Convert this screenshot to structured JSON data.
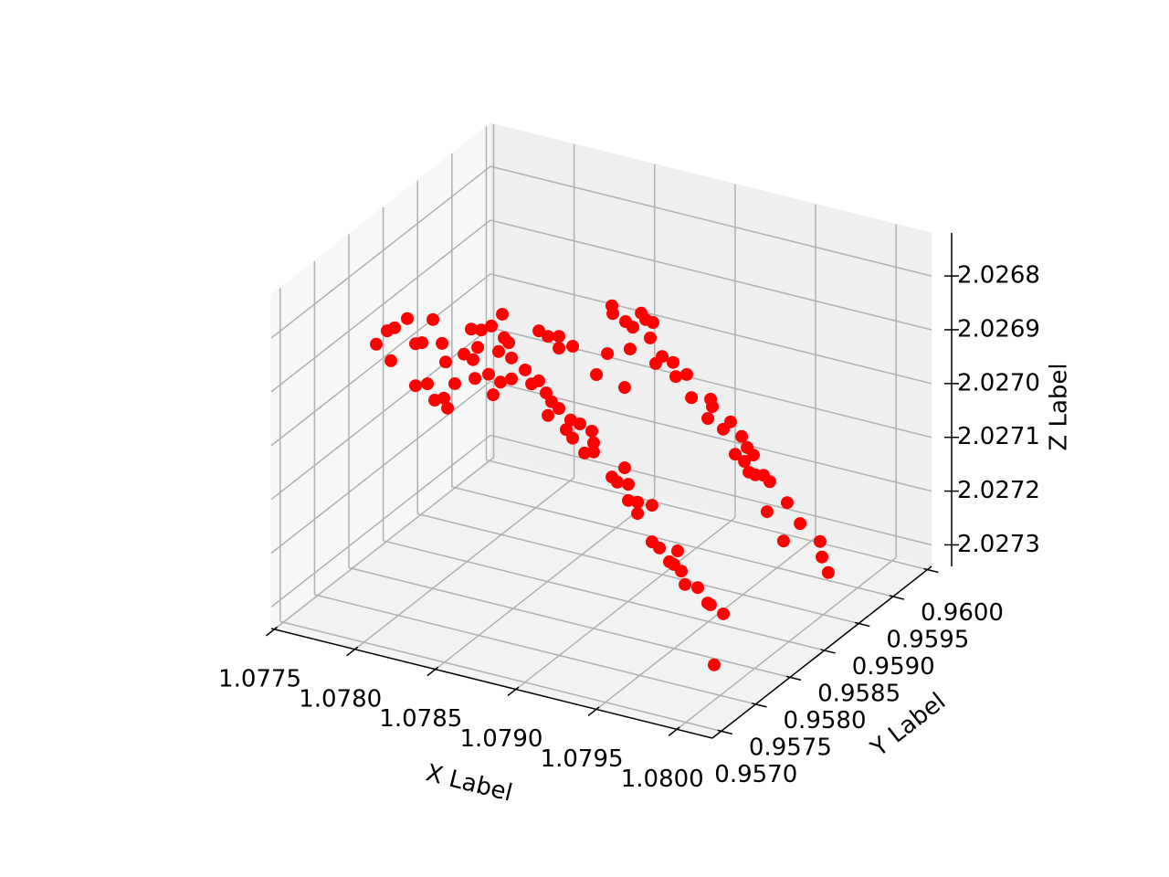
{
  "chart_data": {
    "type": "scatter3d",
    "xlabel": "X Label",
    "ylabel": "Y Label",
    "zlabel": "Z Label",
    "xlim": [
      1.07748,
      1.08022
    ],
    "ylim": [
      0.95687,
      0.96006
    ],
    "zlim": [
      2.02734,
      2.02672
    ],
    "xticks": [
      1.0775,
      {
        "value": 1.078,
        "label": "1.0780"
      },
      1.0785,
      {
        "value": 1.079,
        "label": "1.0790"
      },
      1.0795,
      {
        "value": 1.08,
        "label": "1.0800"
      }
    ],
    "yticks": [
      {
        "value": 0.957,
        "label": "0.9570"
      },
      0.9575,
      {
        "value": 0.958,
        "label": "0.9580"
      },
      0.9585,
      {
        "value": 0.959,
        "label": "0.9590"
      },
      0.9595,
      {
        "value": 0.96,
        "label": "0.9600"
      }
    ],
    "zticks": [
      2.0268,
      2.0269,
      {
        "value": 2.027,
        "label": "2.0270"
      },
      2.0271,
      2.0272,
      2.0273
    ],
    "grid": true,
    "series": [
      {
        "color": "#ff0000",
        "x": [
          1.07786,
          1.077928,
          1.077974,
          1.078053,
          1.077951,
          1.078104,
          1.078144,
          1.078212,
          1.078269,
          1.078104,
          1.078178,
          1.078291,
          1.078348,
          1.078303,
          1.078223,
          1.07828,
          1.078405,
          1.07845,
          1.078512,
          1.078575,
          1.078643,
          1.07849,
          1.078473,
          1.078558,
          1.078586,
          1.078654,
          1.078683,
          1.07862,
          1.0787,
          1.078632,
          1.0787,
          1.078785,
          1.07887,
          1.078927,
          1.078995,
          1.078995,
          1.07908,
          1.078825,
          1.07887,
          1.078915,
          1.078949,
          1.078927,
          1.078995,
          1.079068,
          1.07904,
          1.079125,
          1.079199,
          1.07908,
          1.079154,
          1.07921,
          1.07921,
          1.079324,
          1.079403,
          1.079358,
          1.079426,
          1.079483,
          1.079426,
          1.079573,
          1.079483,
          1.079573,
          1.079619,
          1.079732,
          1.079681,
          1.079709,
          1.079755,
          1.079778,
          1.079857,
          1.079936,
          1.079919,
          1.080016,
          1.079959,
          1.078461,
          1.078643,
          1.078649,
          1.078825,
          1.078853,
          1.078898,
          1.078728,
          1.078773,
          1.078881,
          1.078756,
          1.078615,
          1.078547,
          1.078722,
          1.078915,
          1.078955,
          1.079023,
          1.07904,
          1.079108,
          1.079137,
          1.079256,
          1.079267,
          1.079239,
          1.07938,
          1.079335,
          1.079449,
          1.079483,
          1.079409,
          1.079466,
          1.079522,
          1.079494,
          1.079585,
          1.079624,
          1.079534,
          1.079732,
          1.079607,
          1.079812,
          1.079709,
          1.079936,
          1.079948,
          1.079987
        ],
        "y": [
          0.957508,
          0.957508,
          0.957508,
          0.957508,
          0.957508,
          0.957508,
          0.957508,
          0.957508,
          0.957508,
          0.957508,
          0.957508,
          0.957508,
          0.957508,
          0.957508,
          0.957508,
          0.957508,
          0.957508,
          0.957508,
          0.957508,
          0.957508,
          0.957508,
          0.957508,
          0.957508,
          0.957508,
          0.957508,
          0.957508,
          0.957508,
          0.957508,
          0.957508,
          0.957508,
          0.957508,
          0.957508,
          0.957508,
          0.957508,
          0.957508,
          0.957508,
          0.957508,
          0.957508,
          0.957508,
          0.957508,
          0.957508,
          0.957508,
          0.957508,
          0.957508,
          0.957508,
          0.957508,
          0.957508,
          0.957508,
          0.957508,
          0.957508,
          0.957508,
          0.957508,
          0.957508,
          0.957508,
          0.957508,
          0.957508,
          0.957508,
          0.957508,
          0.957508,
          0.957508,
          0.957508,
          0.957508,
          0.957508,
          0.957508,
          0.957508,
          0.957508,
          0.957508,
          0.957508,
          0.957508,
          0.957508,
          0.957508,
          0.957508,
          0.959103,
          0.959103,
          0.959103,
          0.959103,
          0.959103,
          0.959103,
          0.959103,
          0.959103,
          0.959103,
          0.959103,
          0.959103,
          0.959103,
          0.959103,
          0.959103,
          0.959103,
          0.959103,
          0.959103,
          0.959103,
          0.959103,
          0.959103,
          0.959103,
          0.959103,
          0.959103,
          0.959103,
          0.959103,
          0.959103,
          0.959103,
          0.959103,
          0.959103,
          0.959103,
          0.959103,
          0.959103,
          0.959103,
          0.959103,
          0.959103,
          0.959103,
          0.959103,
          0.959103,
          0.959103
        ],
        "z": [
          2.026847,
          2.026817,
          2.026808,
          2.026785,
          2.026871,
          2.026828,
          2.026823,
          2.026775,
          2.026815,
          2.026906,
          2.026897,
          2.026848,
          2.026884,
          2.026933,
          2.026924,
          2.026916,
          2.026825,
          2.026775,
          2.026772,
          2.02676,
          2.026733,
          2.026806,
          2.026865,
          2.026851,
          2.026887,
          2.026776,
          2.026783,
          2.026804,
          2.02681,
          2.02686,
          2.026849,
          2.026826,
          2.026747,
          2.026753,
          2.026748,
          2.02677,
          2.02676,
          2.026849,
          2.02684,
          2.026859,
          2.026873,
          2.0269,
          2.026882,
          2.026898,
          2.026918,
          2.026901,
          2.026909,
          2.026931,
          2.026953,
          2.02693,
          2.026947,
          2.026985,
          2.026962,
          2.026992,
          2.026991,
          2.02702,
          2.027021,
          2.027019,
          2.027041,
          2.027087,
          2.027095,
          2.027092,
          2.027116,
          2.027119,
          2.027128,
          2.027151,
          2.027151,
          2.027177,
          2.027175,
          2.027188,
          2.027287,
          2.026831,
          2.026877,
          2.026891,
          2.026877,
          2.026887,
          2.026889,
          2.0269,
          2.026907,
          2.026919,
          2.026949,
          2.026968,
          2.027012,
          2.027023,
          2.026964,
          2.026948,
          2.026954,
          2.026979,
          2.02697,
          2.027011,
          2.027005,
          2.027018,
          2.027042,
          2.027038,
          2.027055,
          2.02706,
          2.027078,
          2.027096,
          2.027105,
          2.027089,
          2.027123,
          2.027122,
          2.027131,
          2.027125,
          2.027162,
          2.027188,
          2.027195,
          2.027235,
          2.027219,
          2.027247,
          2.027273
        ]
      }
    ]
  }
}
